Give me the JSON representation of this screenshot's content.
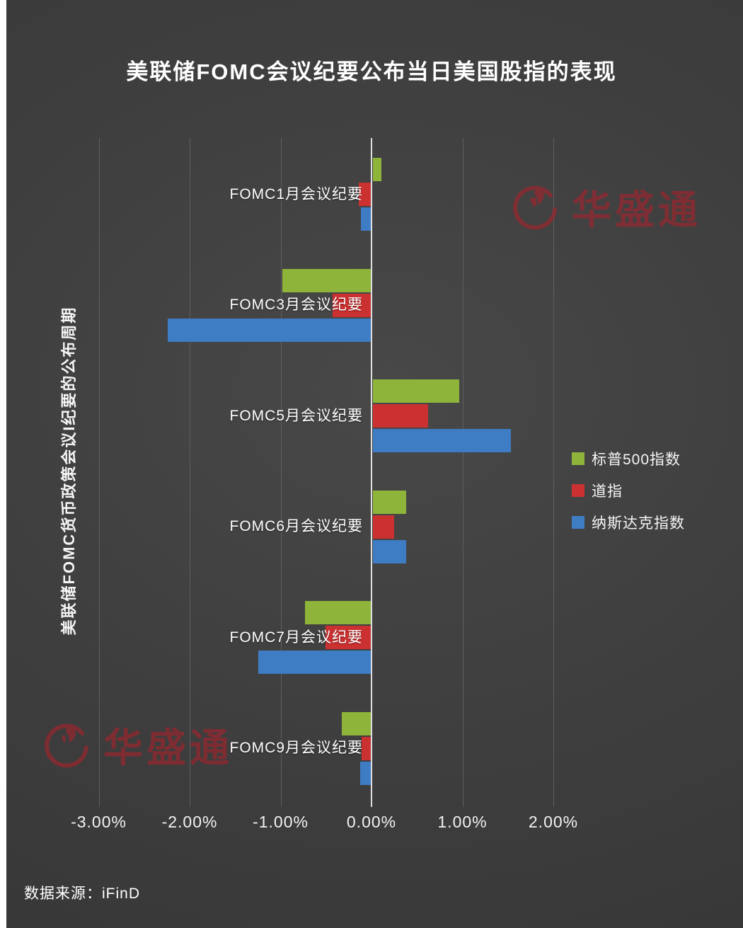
{
  "title": "美联储FOMC会议纪要公布当日美国股指的表现",
  "watermark": {
    "text": "华盛通"
  },
  "source": {
    "text": "数据来源：iFinD"
  },
  "chart_data": {
    "type": "bar",
    "orientation": "horizontal",
    "title": "美联储FOMC会议纪要公布当日美国股指的表现",
    "ylabel": "美联储FOMC货币政策会议I纪要的公布周期",
    "xlabel": "",
    "categories": [
      "FOMC1月会议纪要",
      "FOMC3月会议纪要",
      "FOMC5月会议纪要",
      "FOMC6月会议纪要",
      "FOMC7月会议纪要",
      "FOMC9月会议纪要"
    ],
    "series": [
      {
        "name": "标普500指数",
        "color": "#8eb43a",
        "values": [
          0.1,
          -0.97,
          0.95,
          0.37,
          -0.72,
          -0.32
        ]
      },
      {
        "name": "道指",
        "color": "#cc3131",
        "values": [
          -0.13,
          -0.42,
          0.61,
          0.24,
          -0.5,
          -0.1
        ]
      },
      {
        "name": "纳斯达克指数",
        "color": "#3e7cc4",
        "values": [
          -0.11,
          -2.23,
          1.52,
          0.37,
          -1.24,
          -0.12
        ]
      }
    ],
    "x_ticks": [
      "-3.00%",
      "-2.00%",
      "-1.00%",
      "0.00%",
      "1.00%",
      "2.00%"
    ],
    "x_tick_values": [
      -3,
      -2,
      -1,
      0,
      1,
      2
    ],
    "xlim": [
      -4.09,
      4.09
    ],
    "grid": true,
    "legend_position": "right",
    "background": "#3e3e3e"
  }
}
